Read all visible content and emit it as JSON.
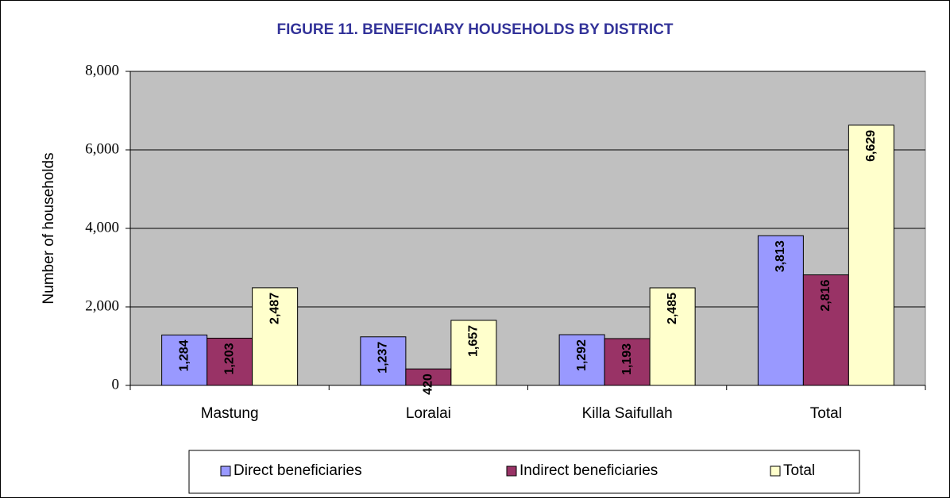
{
  "chart_data": {
    "type": "bar",
    "title": "FIGURE 11. BENEFICIARY HOUSEHOLDS BY DISTRICT",
    "y_label": "Number of households",
    "categories": [
      "Mastung",
      "Loralai",
      "Killa Saifullah",
      "Total"
    ],
    "series": [
      {
        "name": "Direct beneficiaries",
        "color": "#9999ff",
        "values": [
          1284,
          1237,
          1292,
          3813
        ],
        "value_labels": [
          "1,284",
          "1,237",
          "1,292",
          "3,813"
        ]
      },
      {
        "name": "Indirect beneficiaries",
        "color": "#993366",
        "values": [
          1203,
          420,
          1193,
          2816
        ],
        "value_labels": [
          "1,203",
          "420",
          "1,193",
          "2,816"
        ]
      },
      {
        "name": "Total",
        "color": "#ffffcc",
        "values": [
          2487,
          1657,
          2485,
          6629
        ],
        "value_labels": [
          "2,487",
          "1,657",
          "2,485",
          "6,629"
        ]
      }
    ],
    "ylim": [
      0,
      8000
    ],
    "yticks": [
      0,
      {
        "value": 2000,
        "label": "2,000"
      },
      {
        "value": 4000,
        "label": "4,000"
      },
      {
        "value": 6000,
        "label": "6,000"
      },
      {
        "value": 8000,
        "label": "8,000"
      }
    ],
    "grid": true,
    "legend": "bottom",
    "plot_background": "#c0c0c0"
  }
}
